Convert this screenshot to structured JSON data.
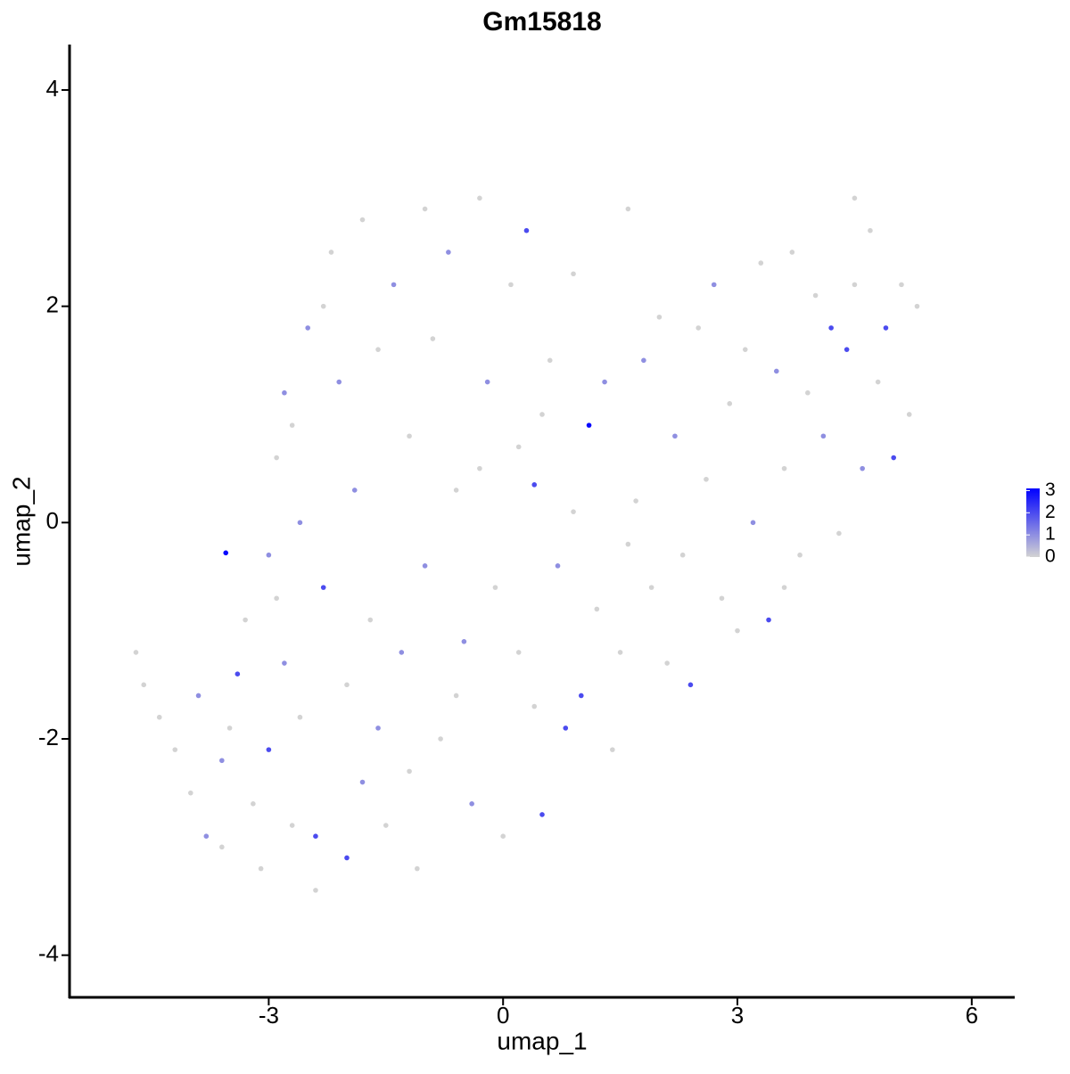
{
  "chart_data": {
    "type": "scatter",
    "title": "Gm15818",
    "x_label": "umap_1",
    "y_label": "umap_2",
    "xlim": [
      -5.55,
      6.55
    ],
    "ylim": [
      -4.39,
      4.42
    ],
    "xticks": [
      -3,
      0,
      3,
      6
    ],
    "yticks": [
      -4,
      -2,
      0,
      2,
      4
    ],
    "grid": false,
    "color_low": "#d3d3d3",
    "color_high": "#0000ff",
    "colorbar": {
      "lim": [
        0,
        3.1
      ],
      "ticks": [
        0,
        1,
        2,
        3
      ]
    },
    "series": [
      {
        "x": [
          -4.7,
          -4.6,
          -4.4,
          -4.2,
          -4.0,
          -3.9,
          -3.8,
          -3.6,
          -3.6,
          -3.55,
          -3.4,
          -3.3,
          -3.2,
          -3.1,
          -3.0,
          -3.0,
          -2.9,
          -2.8,
          -2.8,
          -2.7,
          -2.6,
          -2.6,
          -2.5,
          -2.4,
          -2.4,
          -2.3,
          -2.2,
          -2.1,
          -2.0,
          -2.0,
          -1.9,
          -1.8,
          -1.8,
          -1.7,
          -1.6,
          -1.5,
          -1.4,
          -1.3,
          -1.2,
          -1.1,
          -1.0,
          -1.0,
          -0.9,
          -0.8,
          -0.7,
          -0.6,
          -0.5,
          -0.4,
          -0.3,
          -0.2,
          -0.1,
          0.0,
          0.1,
          0.2,
          0.3,
          0.4,
          0.4,
          0.5,
          0.6,
          0.7,
          0.8,
          0.9,
          1.0,
          1.1,
          1.2,
          1.3,
          1.4,
          1.5,
          1.6,
          1.7,
          1.8,
          1.9,
          2.0,
          2.1,
          2.2,
          2.4,
          2.5,
          2.6,
          2.7,
          2.8,
          2.9,
          3.0,
          3.1,
          3.2,
          3.3,
          3.4,
          3.5,
          3.6,
          3.7,
          3.8,
          3.9,
          4.0,
          4.1,
          4.2,
          4.3,
          4.4,
          4.5,
          4.6,
          4.7,
          4.8,
          4.9,
          5.0,
          5.1,
          5.2,
          5.3,
          -3.5,
          -2.9,
          -2.7,
          -2.3,
          -1.6,
          -1.2,
          -0.6,
          0.2,
          0.9,
          1.6,
          2.3,
          3.6,
          4.5,
          -0.3,
          0.5
        ],
        "values": [
          -1.2,
          -1.5,
          -1.8,
          -2.1,
          -2.5,
          -1.6,
          -2.9,
          -3.0,
          -2.2,
          -0.28,
          -1.4,
          -0.9,
          -2.6,
          -3.2,
          -2.1,
          -0.3,
          0.6,
          1.2,
          -1.3,
          -2.8,
          -1.8,
          0.0,
          1.8,
          -3.4,
          -2.9,
          -0.6,
          2.5,
          1.3,
          -3.1,
          -1.5,
          0.3,
          2.8,
          -2.4,
          -0.9,
          1.6,
          -2.8,
          2.2,
          -1.2,
          0.8,
          -3.2,
          2.9,
          -0.4,
          1.7,
          -2.0,
          2.5,
          0.3,
          -1.1,
          -2.6,
          3.0,
          1.3,
          -0.6,
          -2.9,
          2.2,
          0.7,
          2.7,
          -1.7,
          0.35,
          -2.7,
          1.5,
          -0.4,
          -1.9,
          2.3,
          -1.6,
          0.9,
          -0.8,
          1.3,
          -2.1,
          -1.2,
          2.9,
          0.2,
          1.5,
          -0.6,
          1.9,
          -1.3,
          0.8,
          -1.5,
          1.8,
          0.4,
          2.2,
          -0.7,
          1.1,
          -1.0,
          1.6,
          0.0,
          2.4,
          -0.9,
          1.4,
          0.5,
          2.5,
          -0.3,
          1.2,
          2.1,
          0.8,
          1.8,
          -0.1,
          1.6,
          3.0,
          0.5,
          2.7,
          1.3,
          1.8,
          0.6,
          2.2,
          1.0,
          2.0,
          -1.9,
          -0.7,
          0.9,
          2.0,
          -1.9,
          -2.3,
          -1.6,
          -1.2,
          0.1,
          -0.2,
          -0.3,
          -0.6,
          2.2,
          0.5,
          1.0
        ],
        "expression": [
          0,
          0,
          0,
          0,
          0,
          1,
          1,
          0,
          1,
          3,
          2,
          0,
          0,
          0,
          2,
          1,
          0,
          1,
          1,
          0,
          0,
          1,
          1,
          0,
          2,
          2,
          0,
          1,
          2,
          0,
          1,
          0,
          1,
          0,
          0,
          0,
          1,
          1,
          0,
          0,
          0,
          1,
          0,
          0,
          1,
          0,
          1,
          1,
          0,
          1,
          0,
          0,
          0,
          0,
          2,
          0,
          2,
          2,
          0,
          1,
          2,
          0,
          2,
          3,
          0,
          1,
          0,
          0,
          0,
          0,
          1,
          0,
          0,
          0,
          1,
          2,
          0,
          0,
          1,
          0,
          0,
          0,
          0,
          1,
          0,
          2,
          1,
          0,
          0,
          0,
          0,
          0,
          1,
          2,
          0,
          2,
          0,
          1,
          0,
          0,
          2,
          2,
          0,
          0,
          0,
          0,
          0,
          0,
          0,
          1,
          0,
          0,
          0,
          0,
          0,
          0,
          0,
          0,
          0,
          0
        ]
      }
    ]
  }
}
